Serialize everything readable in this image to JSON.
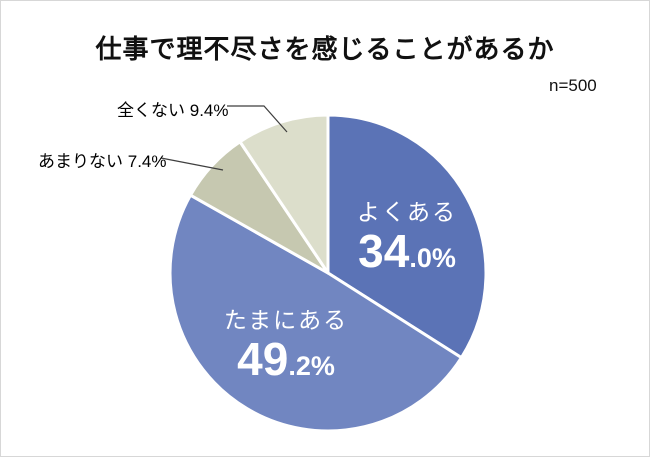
{
  "page": {
    "background_color": "#ffffff",
    "border_color": "#d7d7d7"
  },
  "header": {
    "title": "仕事で理不尽さを感じることがあるか",
    "sample_size": "n=500"
  },
  "chart_data": {
    "type": "pie",
    "title": "仕事で理不尽さを感じることがあるか",
    "sample_size": 500,
    "unit": "%",
    "start_angle_deg": 0,
    "direction": "clockwise",
    "separator_color": "#ffffff",
    "leader_line_color": "#3f3f3f",
    "inside_label_color": "#ffffff",
    "outside_label_color": "#000000",
    "slices": [
      {
        "label": "よくある",
        "value": 34.0,
        "color": "#5b73b6",
        "label_style": "inside"
      },
      {
        "label": "たまにある",
        "value": 49.2,
        "color": "#7186c1",
        "label_style": "inside"
      },
      {
        "label": "あまりない",
        "value": 7.4,
        "color": "#c6c8b0",
        "label_style": "outside"
      },
      {
        "label": "全くない",
        "value": 9.4,
        "color": "#dcdecb",
        "label_style": "outside"
      }
    ]
  }
}
